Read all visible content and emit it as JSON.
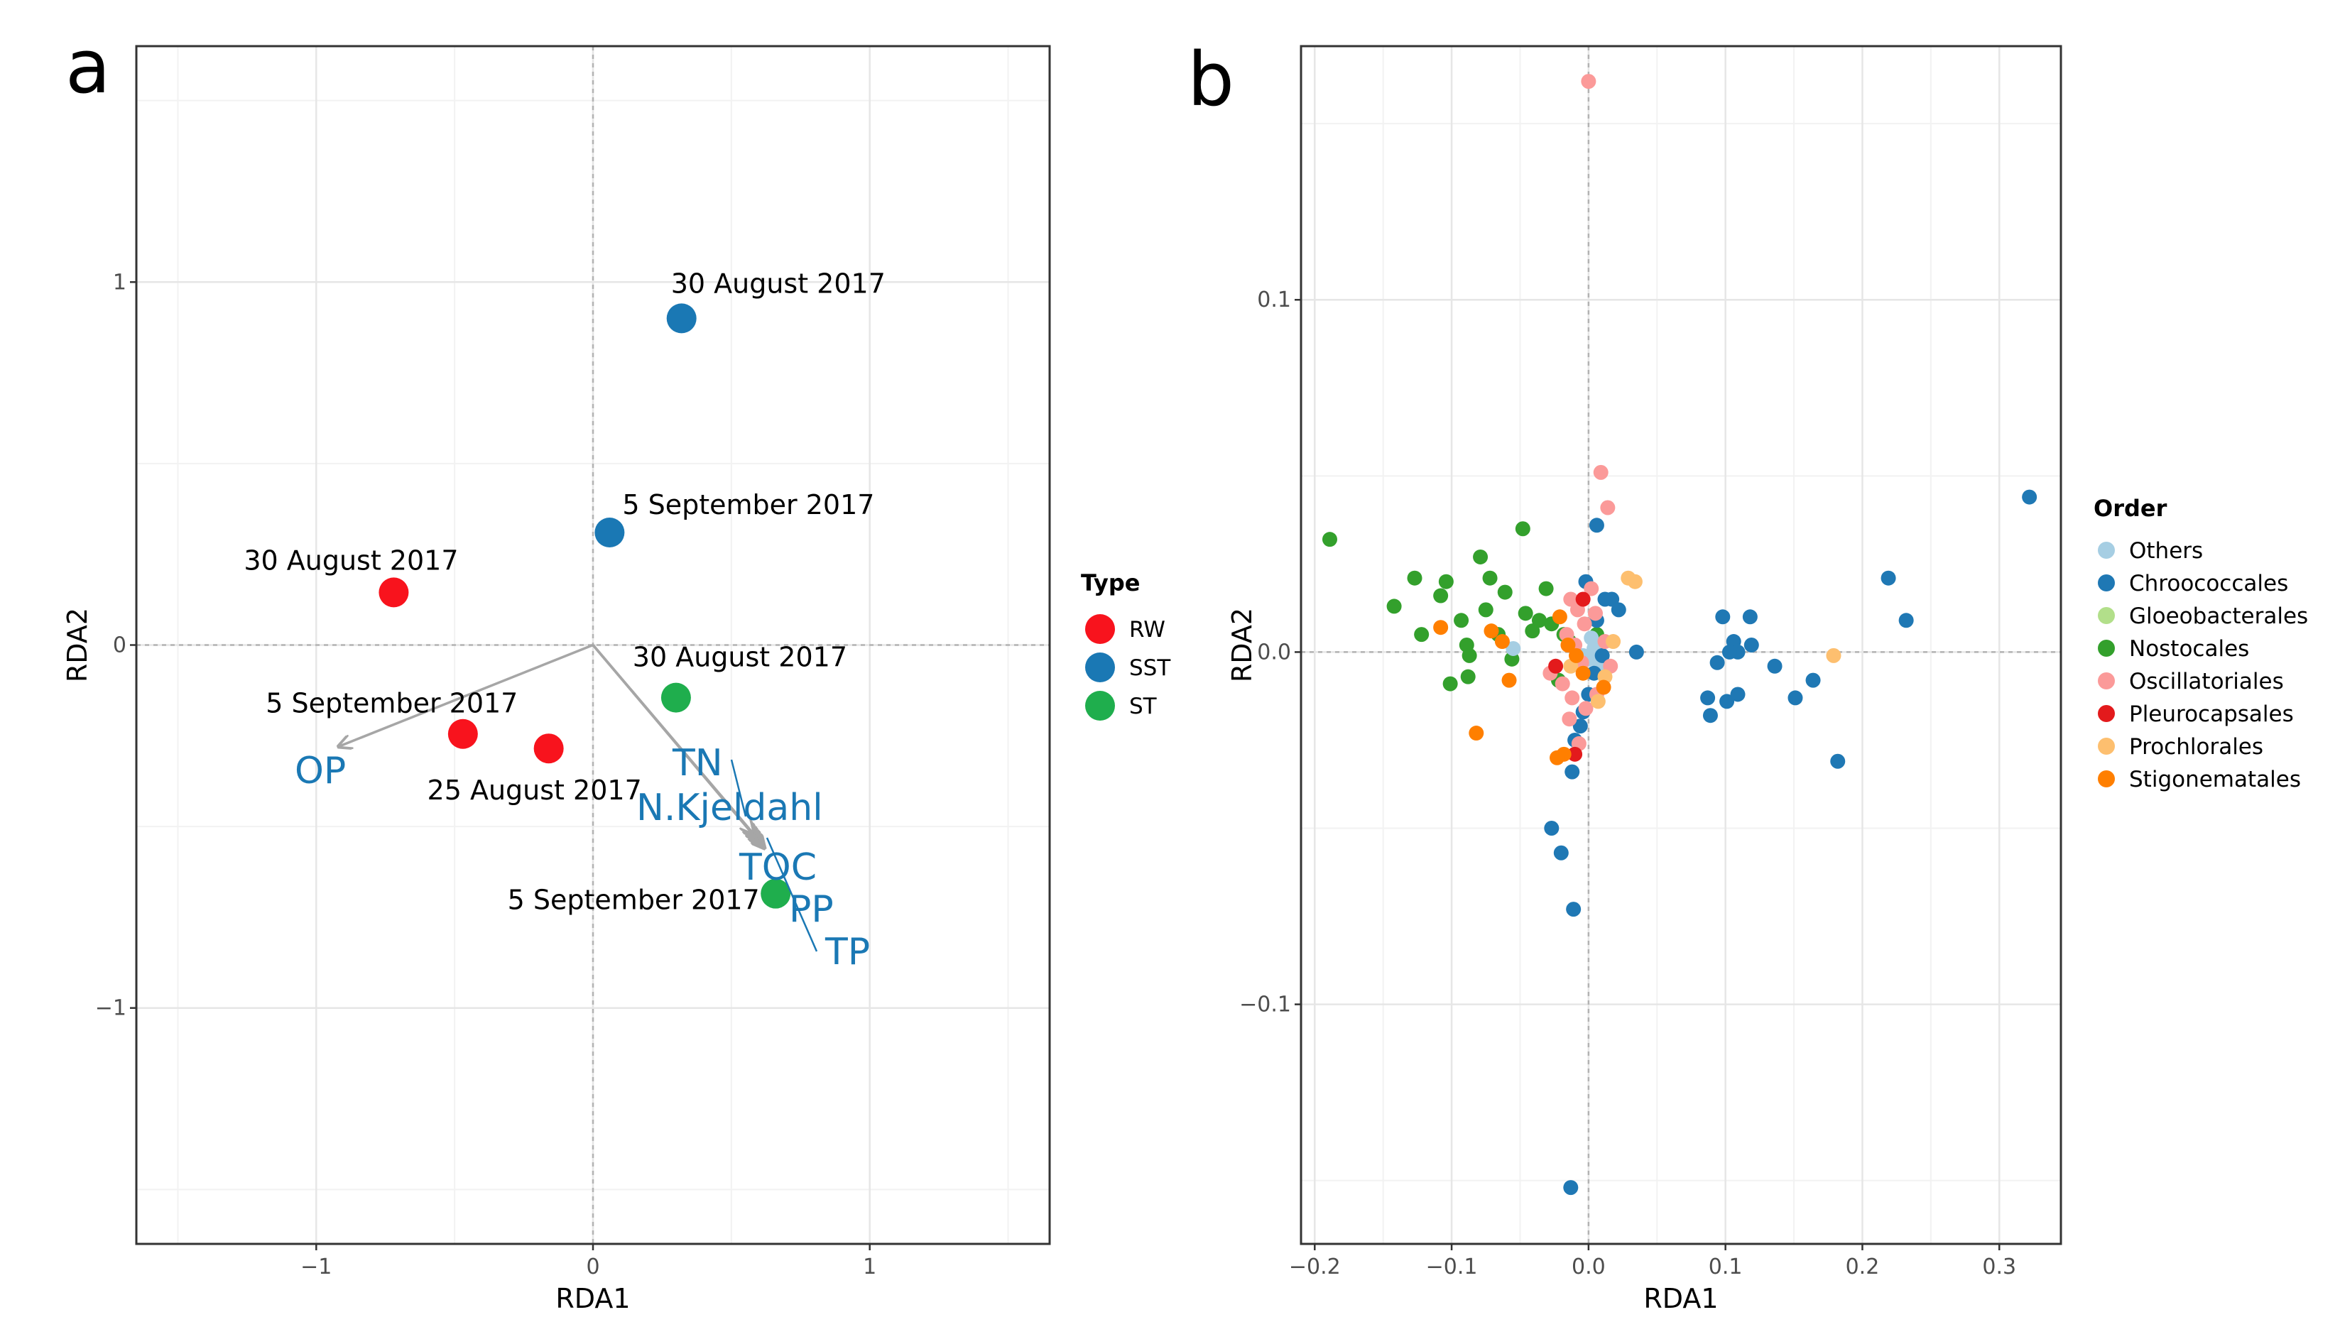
{
  "chart_data": [
    {
      "panel": "a",
      "type": "scatter",
      "xlabel": "RDA1",
      "ylabel": "RDA2",
      "xlim": [
        -1.65,
        1.65
      ],
      "ylim": [
        -1.65,
        1.65
      ],
      "xticks": [
        -1,
        0,
        1
      ],
      "yticks": [
        -1,
        0,
        1
      ],
      "xtick_labels": [
        "−1",
        "0",
        "1"
      ],
      "ytick_labels": [
        "−1",
        "0",
        "1"
      ],
      "grid": true,
      "legend": {
        "title": "Type",
        "placement": "right",
        "items": [
          {
            "label": "RW",
            "color": "#f8131d"
          },
          {
            "label": "SST",
            "color": "#1a78b4"
          },
          {
            "label": "ST",
            "color": "#1fae4d"
          }
        ]
      },
      "points": [
        {
          "x": 0.32,
          "y": 0.9,
          "type": "SST",
          "label": "30 August 2017"
        },
        {
          "x": 0.06,
          "y": 0.31,
          "type": "SST",
          "label": "5 September 2017"
        },
        {
          "x": -0.72,
          "y": 0.145,
          "type": "RW",
          "label": "30 August 2017"
        },
        {
          "x": -0.47,
          "y": -0.245,
          "type": "RW",
          "label": "5 September 2017"
        },
        {
          "x": -0.16,
          "y": -0.285,
          "type": "RW",
          "label": "25 August 2017"
        },
        {
          "x": 0.3,
          "y": -0.145,
          "type": "ST",
          "label": "30 August 2017"
        },
        {
          "x": 0.66,
          "y": -0.685,
          "type": "ST",
          "label": "5 September 2017"
        }
      ],
      "vectors": [
        {
          "label": "OP",
          "x": -0.92,
          "y": -0.28
        },
        {
          "label": "TN",
          "x": 0.58,
          "y": -0.52
        },
        {
          "label": "N.Kjeldahl",
          "x": 0.59,
          "y": -0.53
        },
        {
          "label": "TOC",
          "x": 0.6,
          "y": -0.54
        },
        {
          "label": "PP",
          "x": 0.61,
          "y": -0.55
        },
        {
          "label": "TP",
          "x": 0.62,
          "y": -0.56
        }
      ]
    },
    {
      "panel": "b",
      "type": "scatter",
      "xlabel": "RDA1",
      "ylabel": "RDA2",
      "xlim": [
        -0.21,
        0.345
      ],
      "ylim": [
        -0.168,
        0.172
      ],
      "xticks": [
        -0.2,
        -0.1,
        0.0,
        0.1,
        0.2,
        0.3
      ],
      "yticks": [
        -0.1,
        0.0,
        0.1
      ],
      "xtick_labels": [
        "−0.2",
        "−0.1",
        "0.0",
        "0.1",
        "0.2",
        "0.3"
      ],
      "ytick_labels": [
        "−0.1",
        "0.0",
        "0.1"
      ],
      "grid": true,
      "legend": {
        "title": "Order",
        "placement": "right",
        "items": [
          {
            "label": "Others",
            "color": "#a6cee3"
          },
          {
            "label": "Chroococcales",
            "color": "#1f78b4"
          },
          {
            "label": "Gloeobacterales",
            "color": "#b2df8a"
          },
          {
            "label": "Nostocales",
            "color": "#33a02c"
          },
          {
            "label": "Oscillatoriales",
            "color": "#fb9a99"
          },
          {
            "label": "Pleurocapsales",
            "color": "#e31a1c"
          },
          {
            "label": "Prochlorales",
            "color": "#fdbf6f"
          },
          {
            "label": "Stigonematales",
            "color": "#ff7f00"
          }
        ]
      },
      "points": [
        {
          "x": -0.189,
          "y": 0.032,
          "order": "Nostocales"
        },
        {
          "x": -0.142,
          "y": 0.013,
          "order": "Nostocales"
        },
        {
          "x": -0.127,
          "y": 0.021,
          "order": "Nostocales"
        },
        {
          "x": -0.122,
          "y": 0.005,
          "order": "Nostocales"
        },
        {
          "x": -0.108,
          "y": 0.016,
          "order": "Nostocales"
        },
        {
          "x": -0.104,
          "y": 0.02,
          "order": "Nostocales"
        },
        {
          "x": -0.101,
          "y": -0.009,
          "order": "Nostocales"
        },
        {
          "x": -0.093,
          "y": 0.009,
          "order": "Nostocales"
        },
        {
          "x": -0.089,
          "y": 0.002,
          "order": "Nostocales"
        },
        {
          "x": -0.087,
          "y": -0.001,
          "order": "Nostocales"
        },
        {
          "x": -0.088,
          "y": -0.007,
          "order": "Nostocales"
        },
        {
          "x": -0.079,
          "y": 0.027,
          "order": "Nostocales"
        },
        {
          "x": -0.075,
          "y": 0.012,
          "order": "Nostocales"
        },
        {
          "x": -0.072,
          "y": 0.021,
          "order": "Nostocales"
        },
        {
          "x": -0.066,
          "y": 0.005,
          "order": "Nostocales"
        },
        {
          "x": -0.061,
          "y": 0.017,
          "order": "Nostocales"
        },
        {
          "x": -0.056,
          "y": -0.002,
          "order": "Nostocales"
        },
        {
          "x": -0.048,
          "y": 0.035,
          "order": "Nostocales"
        },
        {
          "x": -0.046,
          "y": 0.011,
          "order": "Nostocales"
        },
        {
          "x": -0.041,
          "y": 0.006,
          "order": "Nostocales"
        },
        {
          "x": -0.036,
          "y": 0.009,
          "order": "Nostocales"
        },
        {
          "x": -0.031,
          "y": 0.018,
          "order": "Nostocales"
        },
        {
          "x": -0.027,
          "y": 0.008,
          "order": "Nostocales"
        },
        {
          "x": -0.022,
          "y": -0.008,
          "order": "Nostocales"
        },
        {
          "x": -0.018,
          "y": 0.005,
          "order": "Nostocales"
        },
        {
          "x": -0.014,
          "y": 0.003,
          "order": "Nostocales"
        },
        {
          "x": 0.006,
          "y": 0.005,
          "order": "Nostocales"
        },
        {
          "x": -0.055,
          "y": 0.001,
          "order": "Others"
        },
        {
          "x": 0.0,
          "y": -0.002,
          "order": "Others"
        },
        {
          "x": 0.004,
          "y": 0.001,
          "order": "Others"
        },
        {
          "x": 0.008,
          "y": -0.004,
          "order": "Others"
        },
        {
          "x": 0.002,
          "y": 0.004,
          "order": "Others"
        },
        {
          "x": -0.004,
          "y": -0.001,
          "order": "Others"
        },
        {
          "x": 0.322,
          "y": 0.044,
          "order": "Chroococcales"
        },
        {
          "x": 0.219,
          "y": 0.021,
          "order": "Chroococcales"
        },
        {
          "x": 0.232,
          "y": 0.009,
          "order": "Chroococcales"
        },
        {
          "x": 0.182,
          "y": -0.031,
          "order": "Chroococcales"
        },
        {
          "x": 0.164,
          "y": -0.008,
          "order": "Chroococcales"
        },
        {
          "x": 0.151,
          "y": -0.013,
          "order": "Chroococcales"
        },
        {
          "x": 0.136,
          "y": -0.004,
          "order": "Chroococcales"
        },
        {
          "x": 0.118,
          "y": 0.01,
          "order": "Chroococcales"
        },
        {
          "x": 0.119,
          "y": 0.002,
          "order": "Chroococcales"
        },
        {
          "x": 0.109,
          "y": 0.0,
          "order": "Chroococcales"
        },
        {
          "x": 0.106,
          "y": 0.003,
          "order": "Chroococcales"
        },
        {
          "x": 0.103,
          "y": 0.0,
          "order": "Chroococcales"
        },
        {
          "x": 0.098,
          "y": 0.01,
          "order": "Chroococcales"
        },
        {
          "x": 0.094,
          "y": -0.003,
          "order": "Chroococcales"
        },
        {
          "x": 0.087,
          "y": -0.013,
          "order": "Chroococcales"
        },
        {
          "x": 0.089,
          "y": -0.018,
          "order": "Chroococcales"
        },
        {
          "x": 0.101,
          "y": -0.014,
          "order": "Chroococcales"
        },
        {
          "x": 0.109,
          "y": -0.012,
          "order": "Chroococcales"
        },
        {
          "x": 0.035,
          "y": 0.0,
          "order": "Chroococcales"
        },
        {
          "x": 0.006,
          "y": 0.036,
          "order": "Chroococcales"
        },
        {
          "x": -0.002,
          "y": 0.02,
          "order": "Chroococcales"
        },
        {
          "x": 0.012,
          "y": 0.015,
          "order": "Chroococcales"
        },
        {
          "x": 0.017,
          "y": 0.015,
          "order": "Chroococcales"
        },
        {
          "x": 0.022,
          "y": 0.012,
          "order": "Chroococcales"
        },
        {
          "x": 0.006,
          "y": 0.009,
          "order": "Chroococcales"
        },
        {
          "x": 0.01,
          "y": -0.001,
          "order": "Chroococcales"
        },
        {
          "x": 0.004,
          "y": -0.006,
          "order": "Chroococcales"
        },
        {
          "x": 0.0,
          "y": -0.012,
          "order": "Chroococcales"
        },
        {
          "x": -0.004,
          "y": -0.017,
          "order": "Chroococcales"
        },
        {
          "x": -0.006,
          "y": -0.021,
          "order": "Chroococcales"
        },
        {
          "x": -0.01,
          "y": -0.025,
          "order": "Chroococcales"
        },
        {
          "x": -0.012,
          "y": -0.034,
          "order": "Chroococcales"
        },
        {
          "x": -0.027,
          "y": -0.05,
          "order": "Chroococcales"
        },
        {
          "x": -0.02,
          "y": -0.057,
          "order": "Chroococcales"
        },
        {
          "x": -0.011,
          "y": -0.073,
          "order": "Chroococcales"
        },
        {
          "x": -0.013,
          "y": -0.152,
          "order": "Chroococcales"
        },
        {
          "x": 0.0,
          "y": 0.162,
          "order": "Oscillatoriales"
        },
        {
          "x": 0.009,
          "y": 0.051,
          "order": "Oscillatoriales"
        },
        {
          "x": 0.014,
          "y": 0.041,
          "order": "Oscillatoriales"
        },
        {
          "x": -0.013,
          "y": 0.015,
          "order": "Oscillatoriales"
        },
        {
          "x": -0.008,
          "y": 0.012,
          "order": "Oscillatoriales"
        },
        {
          "x": -0.003,
          "y": 0.008,
          "order": "Oscillatoriales"
        },
        {
          "x": 0.002,
          "y": 0.018,
          "order": "Oscillatoriales"
        },
        {
          "x": 0.005,
          "y": 0.011,
          "order": "Oscillatoriales"
        },
        {
          "x": -0.016,
          "y": 0.005,
          "order": "Oscillatoriales"
        },
        {
          "x": -0.01,
          "y": 0.002,
          "order": "Oscillatoriales"
        },
        {
          "x": -0.005,
          "y": -0.003,
          "order": "Oscillatoriales"
        },
        {
          "x": -0.028,
          "y": -0.006,
          "order": "Oscillatoriales"
        },
        {
          "x": -0.019,
          "y": -0.009,
          "order": "Oscillatoriales"
        },
        {
          "x": -0.012,
          "y": -0.013,
          "order": "Oscillatoriales"
        },
        {
          "x": -0.002,
          "y": -0.016,
          "order": "Oscillatoriales"
        },
        {
          "x": -0.014,
          "y": -0.019,
          "order": "Oscillatoriales"
        },
        {
          "x": 0.006,
          "y": -0.012,
          "order": "Oscillatoriales"
        },
        {
          "x": 0.012,
          "y": 0.003,
          "order": "Oscillatoriales"
        },
        {
          "x": 0.016,
          "y": -0.004,
          "order": "Oscillatoriales"
        },
        {
          "x": -0.007,
          "y": -0.026,
          "order": "Oscillatoriales"
        },
        {
          "x": -0.004,
          "y": 0.015,
          "order": "Pleurocapsales"
        },
        {
          "x": -0.024,
          "y": -0.004,
          "order": "Pleurocapsales"
        },
        {
          "x": -0.01,
          "y": -0.029,
          "order": "Pleurocapsales"
        },
        {
          "x": 0.029,
          "y": 0.021,
          "order": "Prochlorales"
        },
        {
          "x": 0.034,
          "y": 0.02,
          "order": "Prochlorales"
        },
        {
          "x": 0.179,
          "y": -0.001,
          "order": "Prochlorales"
        },
        {
          "x": 0.018,
          "y": 0.003,
          "order": "Prochlorales"
        },
        {
          "x": 0.012,
          "y": -0.007,
          "order": "Prochlorales"
        },
        {
          "x": 0.007,
          "y": -0.014,
          "order": "Prochlorales"
        },
        {
          "x": -0.013,
          "y": -0.004,
          "order": "Prochlorales"
        },
        {
          "x": -0.108,
          "y": 0.007,
          "order": "Stigonematales"
        },
        {
          "x": -0.071,
          "y": 0.006,
          "order": "Stigonematales"
        },
        {
          "x": -0.063,
          "y": 0.003,
          "order": "Stigonematales"
        },
        {
          "x": -0.058,
          "y": -0.008,
          "order": "Stigonematales"
        },
        {
          "x": -0.082,
          "y": -0.023,
          "order": "Stigonematales"
        },
        {
          "x": -0.021,
          "y": 0.01,
          "order": "Stigonematales"
        },
        {
          "x": -0.015,
          "y": 0.002,
          "order": "Stigonematales"
        },
        {
          "x": -0.009,
          "y": -0.001,
          "order": "Stigonematales"
        },
        {
          "x": -0.004,
          "y": -0.006,
          "order": "Stigonematales"
        },
        {
          "x": -0.018,
          "y": -0.029,
          "order": "Stigonematales"
        },
        {
          "x": -0.023,
          "y": -0.03,
          "order": "Stigonematales"
        },
        {
          "x": 0.011,
          "y": -0.01,
          "order": "Stigonematales"
        }
      ]
    }
  ]
}
